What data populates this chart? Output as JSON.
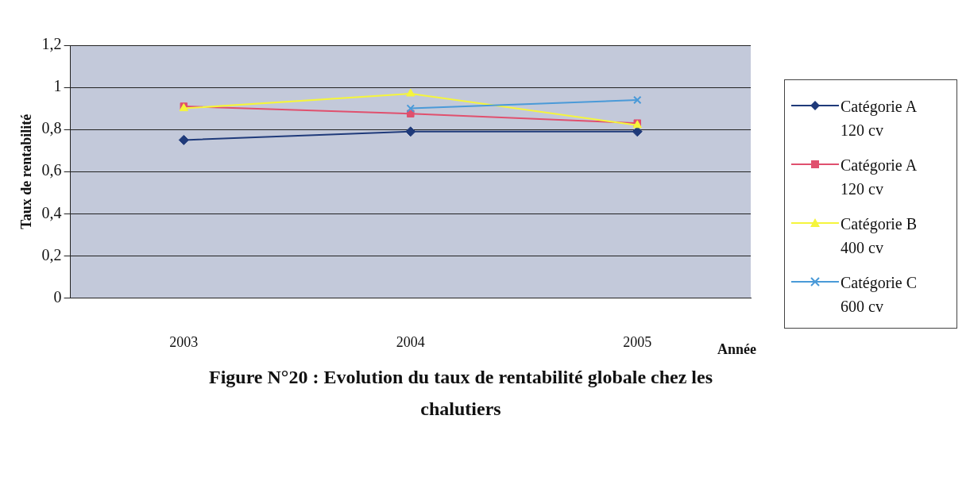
{
  "chart_data": {
    "type": "line",
    "title": "Figure N°20 : Evolution du taux de rentabilité globale chez les chalutiers",
    "xlabel": "Année",
    "ylabel": "Taux de rentabilité",
    "categories": [
      "2003",
      "2004",
      "2005"
    ],
    "series": [
      {
        "name": "Catégorie A 120 cv",
        "color": "#1f3a7a",
        "marker": "diamond",
        "values": [
          0.75,
          0.79,
          0.79
        ]
      },
      {
        "name": "Catégorie A 120 cv",
        "color": "#e0506e",
        "marker": "square",
        "values": [
          0.91,
          0.875,
          0.83
        ]
      },
      {
        "name": "Catégorie B 400 cv",
        "color": "#f5f53c",
        "marker": "triangle",
        "values": [
          0.9,
          0.97,
          0.82
        ]
      },
      {
        "name": "Catégorie C 600 cv",
        "color": "#4a9ad8",
        "marker": "cross",
        "values": [
          null,
          0.9,
          0.94
        ]
      }
    ],
    "ylim": [
      0,
      1.2
    ],
    "yticks": [
      0,
      {
        "value": 0.2,
        "label": "0,2"
      },
      {
        "value": 0.4,
        "label": "0,4"
      },
      {
        "value": 0.6,
        "label": "0,6"
      },
      {
        "value": 0.8,
        "label": "0,8"
      },
      1,
      {
        "value": 1.2,
        "label": "1,2"
      }
    ],
    "grid": "y",
    "legend": "right",
    "line_style": "solid"
  }
}
